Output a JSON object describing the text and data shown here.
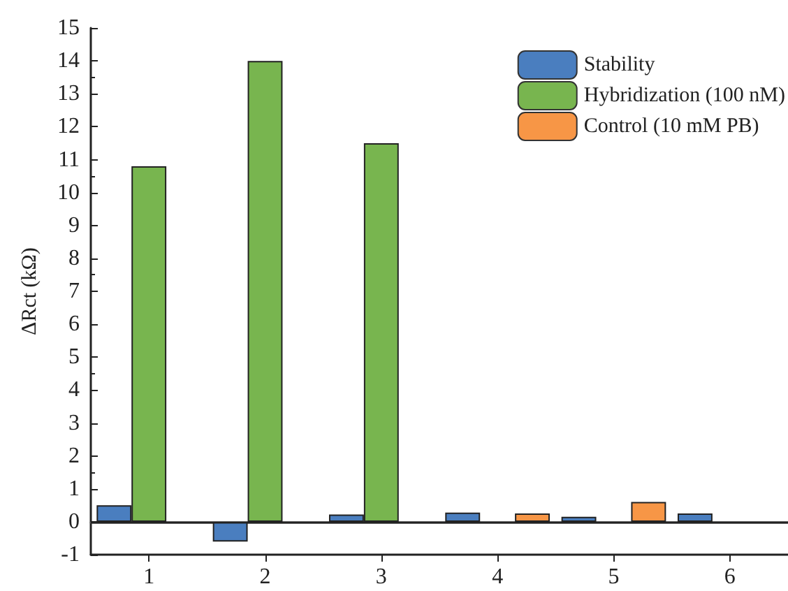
{
  "chart_data": {
    "type": "bar",
    "ylabel": "ΔRct (kΩ)",
    "categories": [
      "1",
      "2",
      "3",
      "4",
      "5",
      "6"
    ],
    "series": [
      {
        "name": "Stability",
        "color": "#4a7ebf",
        "values": [
          0.5,
          -0.6,
          0.22,
          0.28,
          0.15,
          0.25
        ]
      },
      {
        "name": "Hybridization (100 nM)",
        "color": "#78b54f",
        "values": [
          10.8,
          14.0,
          11.5,
          null,
          null,
          null
        ]
      },
      {
        "name": "Control (10 mM PB)",
        "color": "#f79646",
        "values": [
          null,
          null,
          null,
          0.25,
          0.6,
          null
        ]
      }
    ],
    "ylim": [
      -1,
      15
    ],
    "yticks": [
      -1,
      0,
      1,
      2,
      3,
      4,
      5,
      6,
      7,
      8,
      9,
      10,
      11,
      12,
      13,
      14,
      15
    ],
    "ref_lines": [
      {
        "axis": "y",
        "value": 0
      }
    ],
    "grid": false,
    "legend": "top right"
  }
}
